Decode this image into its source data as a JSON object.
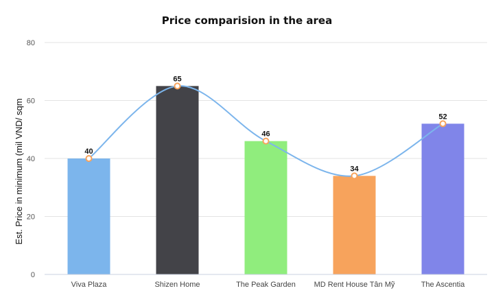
{
  "chart_data": {
    "type": "bar",
    "title": "Price comparision in the area",
    "xlabel": "",
    "ylabel": "Est. Price in minimum (mil VND/ sqm",
    "ylim": [
      0,
      80
    ],
    "yticks": [
      0,
      20,
      40,
      60,
      80
    ],
    "grid": true,
    "legend": "none",
    "categories": [
      "Viva Plaza",
      "Shizen Home",
      "The Peak Garden",
      "MD Rent House Tân Mỹ",
      "The Ascentia"
    ],
    "values": [
      40,
      65,
      46,
      34,
      52
    ],
    "bar_colors": [
      "#7cb5ec",
      "#434348",
      "#90ed7d",
      "#f7a35c",
      "#8085e9"
    ],
    "overlay": {
      "type": "spline",
      "values": [
        40,
        65,
        46,
        34,
        52
      ],
      "line_color": "#7cb5ec",
      "marker_color": "#f7a35c"
    }
  }
}
